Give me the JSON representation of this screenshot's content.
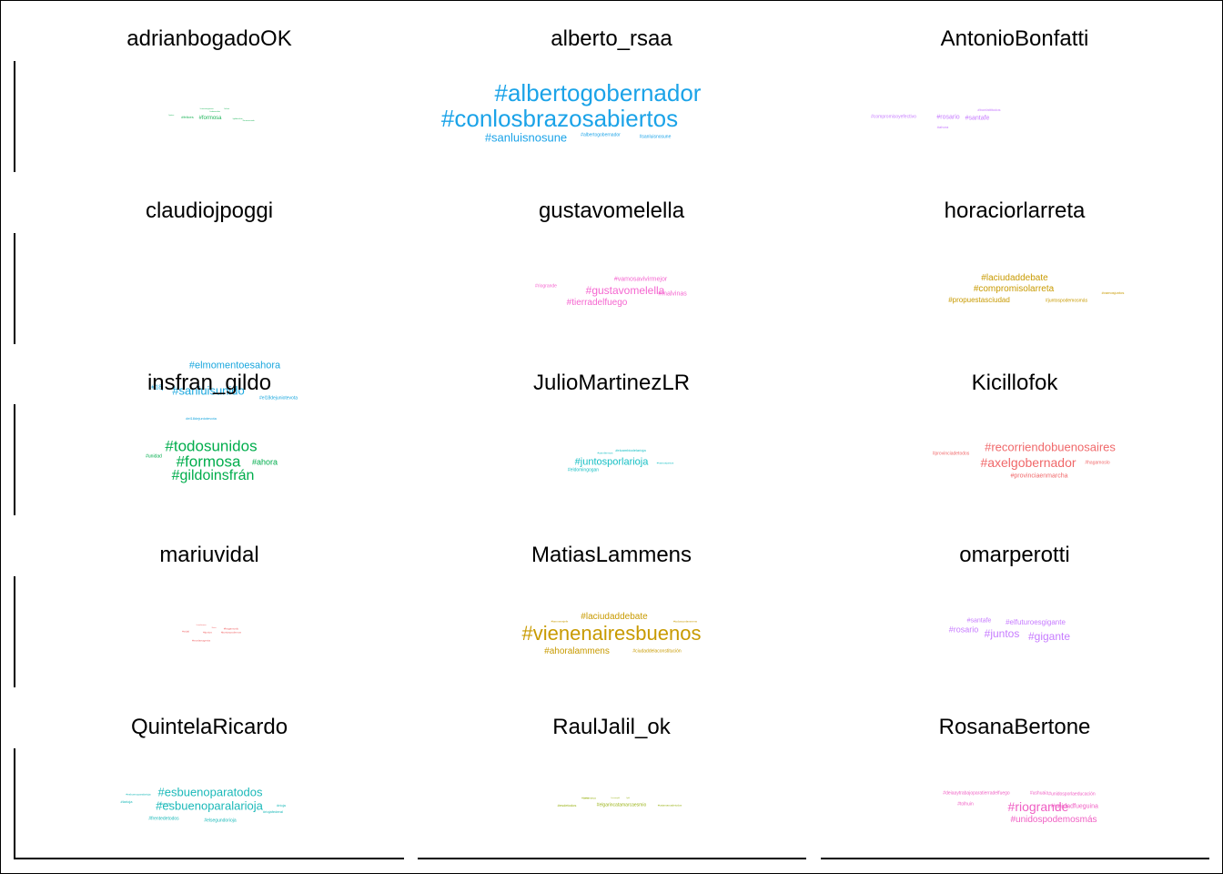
{
  "chart_data": {
    "type": "wordcloud-facets",
    "panels": [
      {
        "name": "adrianbogadoOK",
        "color": "#1fb55a",
        "words": [
          "#formosa",
          "#felices",
          "#cuentaregresiva",
          "#ahora",
          "#juntos",
          "#gildoinsfrán",
          "#formosaunida",
          "#todosunidos"
        ]
      },
      {
        "name": "alberto_rsaa",
        "color": "#1ba3e8",
        "words": [
          "#albertogobernador",
          "#conlosbrazosabiertos",
          "#sanluisnosune",
          "#albertogobernador",
          "#sanluisnosune"
        ]
      },
      {
        "name": "AntonioBonfatti",
        "color": "#c77cff",
        "words": [
          "#compromisoyefectivo",
          "#rosario",
          "#santafe",
          "#bonfattitodos",
          "#ahora"
        ]
      },
      {
        "name": "claudiojpoggi",
        "color": "#1aa7de",
        "words": [
          "#elmomentoesahora",
          "#sanluisunido",
          "#18j",
          "#el18dejuniotevota",
          "#el18dejuniotevota"
        ]
      },
      {
        "name": "gustavomelella",
        "color": "#f566d0",
        "words": [
          "#vamosavivirmejor",
          "#riogrande",
          "#gustavomelella",
          "#malvinas",
          "#tierradelfuego"
        ]
      },
      {
        "name": "horaciorlarreta",
        "color": "#c89a00",
        "words": [
          "#laciudaddebate",
          "#compromisolarreta",
          "#propuestasciudad",
          "#juntospodemosmás",
          "#vamosjuntos"
        ]
      },
      {
        "name": "insfran_gildo",
        "color": "#00ad4c",
        "words": [
          "#todosunidos",
          "#formosa",
          "#ahora",
          "#gildoinsfrán",
          "#unidad"
        ]
      },
      {
        "name": "JulioMartinezLR",
        "color": "#15bfc4",
        "words": [
          "#juntosporlarioja",
          "#elcambiodelarioja",
          "#eldomingogan",
          "#cambiemos",
          "#vamosjuntos"
        ]
      },
      {
        "name": "Kicillofok",
        "color": "#f0686a",
        "words": [
          "#recorriendobuenosaires",
          "#axelgobernador",
          "#provinciadetodos",
          "#hagamoslo",
          "#provinciaenmarcha"
        ]
      },
      {
        "name": "mariuvidal",
        "color": "#f0686a",
        "words": [
          "#vidal",
          "#juntos",
          "#cambiemos",
          "#bsas",
          "#hagamoslo",
          "#maríaeugenia",
          "#juntospodemos"
        ]
      },
      {
        "name": "MatiasLammens",
        "color": "#c89a00",
        "words": [
          "#laciudaddebate",
          "#vienenairesbuenos",
          "#ahoralammens",
          "#ciudaddelaconstitución",
          "#lammensjefe",
          "#todosconlammens"
        ]
      },
      {
        "name": "omarperotti",
        "color": "#c77cff",
        "words": [
          "#santafe",
          "#elfuturoesgigante",
          "#rosario",
          "#juntos",
          "#gigante"
        ]
      },
      {
        "name": "QuintelaRicardo",
        "color": "#1bb9b9",
        "words": [
          "#esbuenoparatodos",
          "#esbuenoparalarioja",
          "#larioja",
          "#esbuenoparalarioja",
          "#frentedetodos",
          "#rioja",
          "#riojafederal",
          "#elsegundorioja",
          "#quintela"
        ]
      },
      {
        "name": "RaulJalil_ok",
        "color": "#9ab316",
        "words": [
          "#elgarincatamarcaesmio",
          "#esdetodos",
          "#catamarca",
          "#somosjalil",
          "#jalil",
          "#juntos",
          "#catamarcadetodos"
        ]
      },
      {
        "name": "RosanaBertone",
        "color": "#f060c4",
        "words": [
          "#deiaaytrabajoparatierradelfuego",
          "#ushuaia",
          "#riogrande",
          "#unidadfueguina",
          "#unidospodemosmás",
          "#tolhuin",
          "#unidosporlaeducación"
        ]
      }
    ]
  }
}
